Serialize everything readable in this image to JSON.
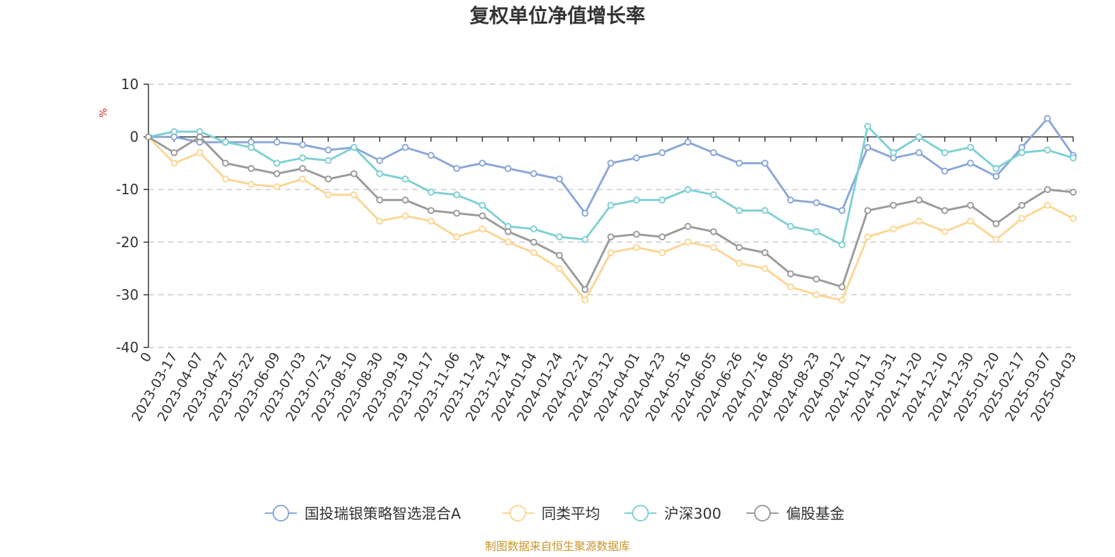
{
  "chart_data": {
    "type": "line",
    "title": "复权单位净值增长率",
    "ylabel": "%",
    "ylim": [
      -40,
      10
    ],
    "yticks": [
      10,
      0,
      -10,
      -20,
      -30,
      -40
    ],
    "xlabel": "",
    "categories": [
      "0",
      "2023-03-17",
      "2023-04-07",
      "2023-04-27",
      "2023-05-22",
      "2023-06-09",
      "2023-07-03",
      "2023-07-21",
      "2023-08-10",
      "2023-08-30",
      "2023-09-19",
      "2023-10-17",
      "2023-11-06",
      "2023-11-24",
      "2023-12-14",
      "2024-01-04",
      "2024-01-24",
      "2024-02-21",
      "2024-03-12",
      "2024-04-01",
      "2024-04-23",
      "2024-05-16",
      "2024-06-05",
      "2024-06-26",
      "2024-07-16",
      "2024-08-05",
      "2024-08-23",
      "2024-09-12",
      "2024-10-11",
      "2024-10-31",
      "2024-11-20",
      "2024-12-10",
      "2024-12-30",
      "2025-01-20",
      "2025-02-17",
      "2025-03-07",
      "2025-04-03"
    ],
    "grid": true,
    "legend_position": "bottom-center",
    "series": [
      {
        "name": "国投瑞银策略智选混合A",
        "color": "#8ba7d8",
        "values": [
          0,
          0,
          -1,
          -1,
          -1,
          -1,
          -1.5,
          -2.5,
          -2,
          -4.5,
          -2,
          -3.5,
          -6,
          -5,
          -6,
          -7,
          -8,
          -14.5,
          -5,
          -4,
          -3,
          -1,
          -3,
          -5,
          -5,
          -12,
          -12.5,
          -14,
          -2,
          -4,
          -3,
          -6.5,
          -5,
          -7.5,
          -2,
          3.5,
          -3.5
        ]
      },
      {
        "name": "同类平均",
        "color": "#fcd694",
        "values": [
          0,
          -5,
          -3,
          -8,
          -9,
          -9.5,
          -8,
          -11,
          -11,
          -16,
          -15,
          -16,
          -19,
          -17.5,
          -20,
          -22,
          -25,
          -31,
          -22,
          -21,
          -22,
          -20,
          -21,
          -24,
          -25,
          -28.5,
          -30,
          -31,
          -19,
          -17.5,
          -16,
          -18,
          -16,
          -19.5,
          -15.5,
          -13,
          -15.5
        ]
      },
      {
        "name": "沪深300",
        "color": "#7fd0d4",
        "values": [
          0,
          1,
          1,
          -1,
          -2,
          -5,
          -4,
          -4.5,
          -2,
          -7,
          -8,
          -10.5,
          -11,
          -13,
          -17,
          -17.5,
          -19,
          -19.5,
          -13,
          -12,
          -12,
          -10,
          -11,
          -14,
          -14,
          -17,
          -18,
          -20.5,
          2,
          -3,
          0,
          -3,
          -2,
          -6,
          -3,
          -2.5,
          -4
        ]
      },
      {
        "name": "偏股基金",
        "color": "#9b9b9b",
        "values": [
          0,
          -3,
          0,
          -5,
          -6,
          -7,
          -6,
          -8,
          -7,
          -12,
          -12,
          -14,
          -14.5,
          -15,
          -18,
          -20,
          -22.5,
          -29,
          -19,
          -18.5,
          -19,
          -17,
          -18,
          -21,
          -22,
          -26,
          -27,
          -28.5,
          -14,
          -13,
          -12,
          -14,
          -13,
          -16.5,
          -13,
          -10,
          -10.5
        ]
      }
    ]
  },
  "source_text": "制图数据来自恒生聚源数据库",
  "colors": {
    "axis": "#333333",
    "grid": "#cccccc",
    "ylabel": "#e02020",
    "source": "#c8962d"
  }
}
